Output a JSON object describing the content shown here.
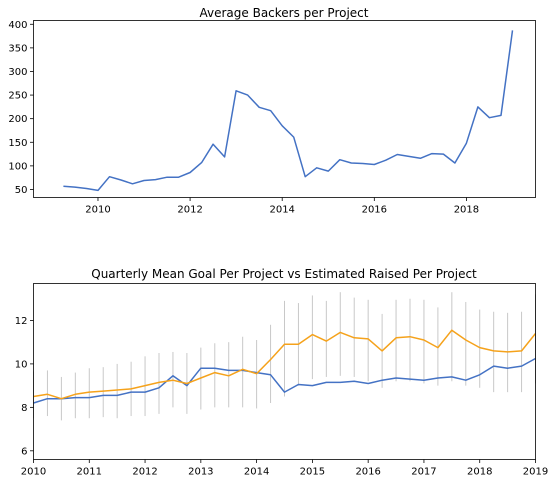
{
  "chart_data": [
    {
      "type": "line",
      "title": "Average Backers per Project",
      "xlabel": "",
      "ylabel": "",
      "xlim": [
        2008.6,
        2019.5
      ],
      "ylim": [
        33,
        408
      ],
      "x_ticks": [
        2010,
        2012,
        2014,
        2016,
        2018
      ],
      "y_ticks": [
        50,
        100,
        150,
        200,
        250,
        300,
        350,
        400
      ],
      "grid": false,
      "legend": "none",
      "series": [
        {
          "color": "#4472c4",
          "x": [
            2009.25,
            2009.5,
            2009.75,
            2010.0,
            2010.25,
            2010.5,
            2010.75,
            2011.0,
            2011.25,
            2011.5,
            2011.75,
            2012.0,
            2012.25,
            2012.5,
            2012.75,
            2013.0,
            2013.25,
            2013.5,
            2013.75,
            2014.0,
            2014.25,
            2014.5,
            2014.75,
            2015.0,
            2015.25,
            2015.5,
            2015.75,
            2016.0,
            2016.25,
            2016.5,
            2016.75,
            2017.0,
            2017.25,
            2017.5,
            2017.75,
            2018.0,
            2018.25,
            2018.5,
            2018.75,
            2019.0
          ],
          "values": [
            57,
            55,
            52,
            48,
            77,
            70,
            62,
            69,
            71,
            76,
            76,
            86,
            107,
            146,
            119,
            259,
            250,
            224,
            217,
            185,
            161,
            77,
            96,
            89,
            113,
            106,
            105,
            103,
            112,
            124,
            120,
            116,
            126,
            125,
            106,
            148,
            225,
            202,
            207,
            387
          ]
        }
      ]
    },
    {
      "type": "line",
      "title": "Quarterly Mean Goal Per Project vs Estimated Raised Per Project",
      "xlabel": "",
      "ylabel": "",
      "xlim": [
        2010,
        2019
      ],
      "ylim": [
        5.6,
        13.7
      ],
      "x_ticks": [
        2010,
        2011,
        2012,
        2013,
        2014,
        2015,
        2016,
        2017,
        2018,
        2019
      ],
      "y_ticks": [
        6,
        8,
        10,
        12
      ],
      "grid": false,
      "legend": "none",
      "x": [
        2010.0,
        2010.25,
        2010.5,
        2010.75,
        2011.0,
        2011.25,
        2011.5,
        2011.75,
        2012.0,
        2012.25,
        2012.5,
        2012.75,
        2013.0,
        2013.25,
        2013.5,
        2013.75,
        2014.0,
        2014.25,
        2014.5,
        2014.75,
        2015.0,
        2015.25,
        2015.5,
        2015.75,
        2016.0,
        2016.25,
        2016.5,
        2016.75,
        2017.0,
        2017.25,
        2017.5,
        2017.75,
        2018.0,
        2018.25,
        2018.5,
        2018.75,
        2019.0
      ],
      "series": [
        {
          "color": "#4472c4",
          "values": [
            8.2,
            8.4,
            8.4,
            8.45,
            8.45,
            8.55,
            8.55,
            8.7,
            8.7,
            8.9,
            9.45,
            9.0,
            9.8,
            9.8,
            9.7,
            9.7,
            9.6,
            9.5,
            8.7,
            9.05,
            9.0,
            9.15,
            9.15,
            9.2,
            9.1,
            9.25,
            9.35,
            9.3,
            9.25,
            9.35,
            9.4,
            9.25,
            9.5,
            9.9,
            9.8,
            9.9,
            10.25
          ]
        },
        {
          "color": "#f5a21b",
          "values": [
            8.5,
            8.6,
            8.4,
            8.6,
            8.7,
            8.75,
            8.8,
            8.85,
            9.0,
            9.15,
            9.25,
            9.1,
            9.35,
            9.6,
            9.45,
            9.75,
            9.55,
            10.2,
            10.9,
            10.9,
            11.35,
            11.05,
            11.45,
            11.2,
            11.15,
            10.6,
            11.2,
            11.25,
            11.1,
            10.75,
            11.55,
            11.1,
            10.75,
            10.6,
            10.55,
            10.6,
            11.4
          ]
        }
      ],
      "error_bars": {
        "color": "#c8c8c8",
        "low": [
          7.5,
          7.6,
          7.4,
          7.5,
          7.5,
          7.55,
          7.5,
          7.6,
          7.6,
          7.7,
          8.0,
          7.7,
          7.9,
          8.0,
          8.0,
          8.0,
          7.95,
          8.2,
          8.5,
          9.0,
          9.3,
          9.4,
          9.45,
          9.4,
          9.2,
          8.9,
          9.2,
          9.2,
          9.1,
          9.0,
          9.2,
          9.0,
          8.9,
          8.7,
          8.7,
          8.7,
          9.1
        ],
        "high": [
          9.65,
          9.7,
          9.4,
          9.6,
          9.8,
          9.85,
          10.0,
          10.1,
          10.35,
          10.5,
          10.55,
          10.5,
          10.75,
          10.95,
          11.0,
          11.25,
          11.1,
          11.8,
          12.9,
          12.8,
          13.15,
          12.9,
          13.3,
          13.05,
          12.95,
          12.3,
          12.95,
          13.0,
          12.95,
          12.6,
          13.3,
          12.85,
          12.5,
          12.4,
          12.35,
          12.4,
          13.2
        ]
      }
    }
  ]
}
